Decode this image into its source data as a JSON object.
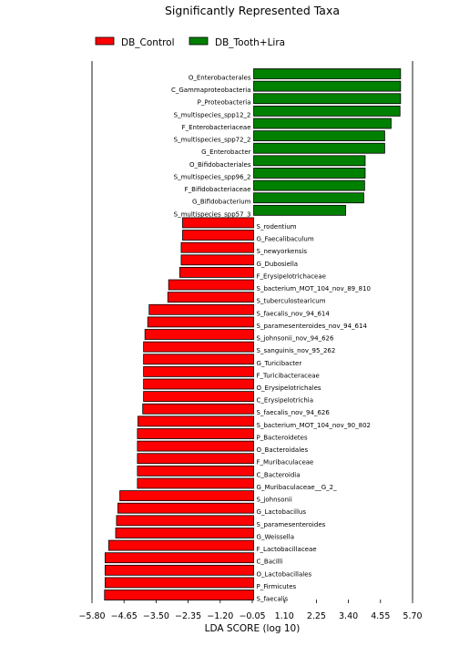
{
  "chart_data": {
    "type": "bar",
    "orientation": "horizontal",
    "title": "Significantly Represented Taxa",
    "xlabel": "LDA SCORE (log 10)",
    "xlim": [
      -5.8,
      5.7
    ],
    "xticks": [
      "−5.80",
      "−4.65",
      "−3.50",
      "−2.35",
      "−1.20",
      "−0.05",
      "1.10",
      "2.25",
      "3.40",
      "4.55",
      "5.70"
    ],
    "xtick_values": [
      -5.8,
      -4.65,
      -3.5,
      -2.35,
      -1.2,
      -0.05,
      1.1,
      2.25,
      3.4,
      4.55,
      5.7
    ],
    "legend": [
      {
        "name": "DB_Control",
        "color": "#ff0000"
      },
      {
        "name": "DB_Tooth+Lira",
        "color": "#008000"
      }
    ],
    "grid": false,
    "legend_position": "top",
    "bars": [
      {
        "label": "O_Enterobacterales",
        "value": 5.27,
        "group": "DB_Tooth+Lira"
      },
      {
        "label": "C_Gammaproteobacteria",
        "value": 5.27,
        "group": "DB_Tooth+Lira"
      },
      {
        "label": "P_Proteobacteria",
        "value": 5.27,
        "group": "DB_Tooth+Lira"
      },
      {
        "label": "S_multispecies_spp12_2",
        "value": 5.25,
        "group": "DB_Tooth+Lira"
      },
      {
        "label": "F_Enterobacteriaceae",
        "value": 4.93,
        "group": "DB_Tooth+Lira"
      },
      {
        "label": "S_multispecies_spp72_2",
        "value": 4.7,
        "group": "DB_Tooth+Lira"
      },
      {
        "label": "G_Enterobacter",
        "value": 4.7,
        "group": "DB_Tooth+Lira"
      },
      {
        "label": "O_Bifidobacteriales",
        "value": 4.0,
        "group": "DB_Tooth+Lira"
      },
      {
        "label": "S_multispecies_spp96_2",
        "value": 4.0,
        "group": "DB_Tooth+Lira"
      },
      {
        "label": "F_Bifidobacteriaceae",
        "value": 3.98,
        "group": "DB_Tooth+Lira"
      },
      {
        "label": "G_Bifidobacterium",
        "value": 3.95,
        "group": "DB_Tooth+Lira"
      },
      {
        "label": "S_multispecies_spp57_3",
        "value": 3.3,
        "group": "DB_Tooth+Lira"
      },
      {
        "label": "S_rodentium",
        "value": -2.55,
        "group": "DB_Control"
      },
      {
        "label": "G_Faecalibaculum",
        "value": -2.55,
        "group": "DB_Control"
      },
      {
        "label": "S_newyorkensis",
        "value": -2.6,
        "group": "DB_Control"
      },
      {
        "label": "G_Dubosiella",
        "value": -2.6,
        "group": "DB_Control"
      },
      {
        "label": "F_Erysipelotrichaceae",
        "value": -2.65,
        "group": "DB_Control"
      },
      {
        "label": "S_bacterium_MOT_104_nov_89_810",
        "value": -3.05,
        "group": "DB_Control"
      },
      {
        "label": "S_tuberculostearicum",
        "value": -3.08,
        "group": "DB_Control"
      },
      {
        "label": "S_faecalis_nov_94_614",
        "value": -3.75,
        "group": "DB_Control"
      },
      {
        "label": "S_paramesenteroides_nov_94_614",
        "value": -3.8,
        "group": "DB_Control"
      },
      {
        "label": "S_johnsonii_nov_94_626",
        "value": -3.9,
        "group": "DB_Control"
      },
      {
        "label": "S_sanguinis_nov_95_262",
        "value": -3.95,
        "group": "DB_Control"
      },
      {
        "label": "G_Turicibacter",
        "value": -3.95,
        "group": "DB_Control"
      },
      {
        "label": "F_Turicibacteraceae",
        "value": -3.95,
        "group": "DB_Control"
      },
      {
        "label": "O_Erysipelotrichales",
        "value": -3.95,
        "group": "DB_Control"
      },
      {
        "label": "C_Erysipelotrichia",
        "value": -3.95,
        "group": "DB_Control"
      },
      {
        "label": "S_faecalis_nov_94_626",
        "value": -3.98,
        "group": "DB_Control"
      },
      {
        "label": "S_bacterium_MOT_104_nov_90_802",
        "value": -4.15,
        "group": "DB_Control"
      },
      {
        "label": "P_Bacteroidetes",
        "value": -4.17,
        "group": "DB_Control"
      },
      {
        "label": "O_Bacteroidales",
        "value": -4.17,
        "group": "DB_Control"
      },
      {
        "label": "F_Muribaculaceae",
        "value": -4.17,
        "group": "DB_Control"
      },
      {
        "label": "C_Bacteroidia",
        "value": -4.17,
        "group": "DB_Control"
      },
      {
        "label": "G_Muribaculaceae__G_2_",
        "value": -4.17,
        "group": "DB_Control"
      },
      {
        "label": "S_johnsonii",
        "value": -4.8,
        "group": "DB_Control"
      },
      {
        "label": "G_Lactobacillus",
        "value": -4.87,
        "group": "DB_Control"
      },
      {
        "label": "S_paramesenteroides",
        "value": -4.92,
        "group": "DB_Control"
      },
      {
        "label": "G_Weissella",
        "value": -4.95,
        "group": "DB_Control"
      },
      {
        "label": "F_Lactobacillaceae",
        "value": -5.2,
        "group": "DB_Control"
      },
      {
        "label": "C_Bacilli",
        "value": -5.33,
        "group": "DB_Control"
      },
      {
        "label": "O_Lactobacillales",
        "value": -5.33,
        "group": "DB_Control"
      },
      {
        "label": "P_Firmicutes",
        "value": -5.33,
        "group": "DB_Control"
      },
      {
        "label": "S_faecalis",
        "value": -5.35,
        "group": "DB_Control"
      }
    ]
  }
}
